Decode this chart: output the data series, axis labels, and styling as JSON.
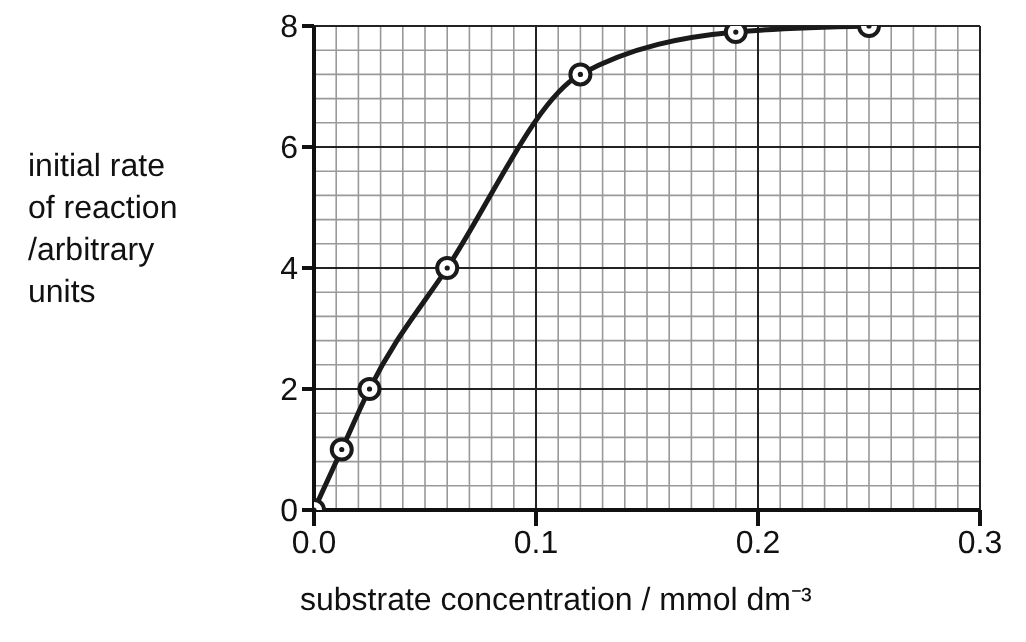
{
  "chart_data": {
    "type": "line",
    "xlabel": "substrate concentration / mmol dm⁻³",
    "ylabel": "initial rate\nof reaction\n/arbitrary\nunits",
    "x": [
      0,
      0.0125,
      0.025,
      0.06,
      0.12,
      0.19,
      0.25
    ],
    "series": [
      {
        "color": "#1a1a1a",
        "values": [
          0,
          1,
          2,
          4,
          7.2,
          7.9,
          8
        ]
      }
    ],
    "xlim": [
      0,
      0.3
    ],
    "xticks": [
      {
        "value": 0,
        "label": "0.0"
      },
      {
        "value": 0.1,
        "label": "0.1"
      },
      {
        "value": 0.2,
        "label": "0.2"
      },
      {
        "value": 0.3,
        "label": "0.3"
      }
    ],
    "ylim": [
      0,
      8
    ],
    "yticks": [
      0,
      2,
      4,
      6,
      8
    ],
    "grid": true,
    "marker": "circle",
    "line_style": "solid"
  }
}
